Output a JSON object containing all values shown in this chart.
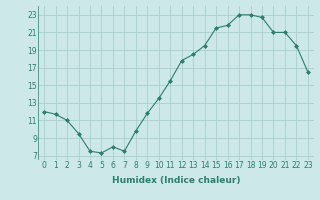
{
  "x": [
    0,
    1,
    2,
    3,
    4,
    5,
    6,
    7,
    8,
    9,
    10,
    11,
    12,
    13,
    14,
    15,
    16,
    17,
    18,
    19,
    20,
    21,
    22,
    23
  ],
  "y": [
    12.0,
    11.7,
    11.0,
    9.5,
    7.5,
    7.3,
    8.0,
    7.5,
    9.8,
    11.8,
    13.5,
    15.5,
    17.8,
    18.5,
    19.5,
    21.5,
    21.8,
    23.0,
    23.0,
    22.7,
    21.0,
    21.0,
    19.5,
    16.5
  ],
  "line_color": "#2e7d6e",
  "marker": "D",
  "marker_size": 2.0,
  "bg_color": "#cce8e8",
  "grid_color": "#aacece",
  "xlabel": "Humidex (Indice chaleur)",
  "xlim": [
    -0.5,
    23.5
  ],
  "ylim": [
    6.5,
    24.0
  ],
  "xticks": [
    0,
    1,
    2,
    3,
    4,
    5,
    6,
    7,
    8,
    9,
    10,
    11,
    12,
    13,
    14,
    15,
    16,
    17,
    18,
    19,
    20,
    21,
    22,
    23
  ],
  "yticks": [
    7,
    9,
    11,
    13,
    15,
    17,
    19,
    21,
    23
  ],
  "tick_fontsize": 5.5,
  "xlabel_fontsize": 6.5
}
